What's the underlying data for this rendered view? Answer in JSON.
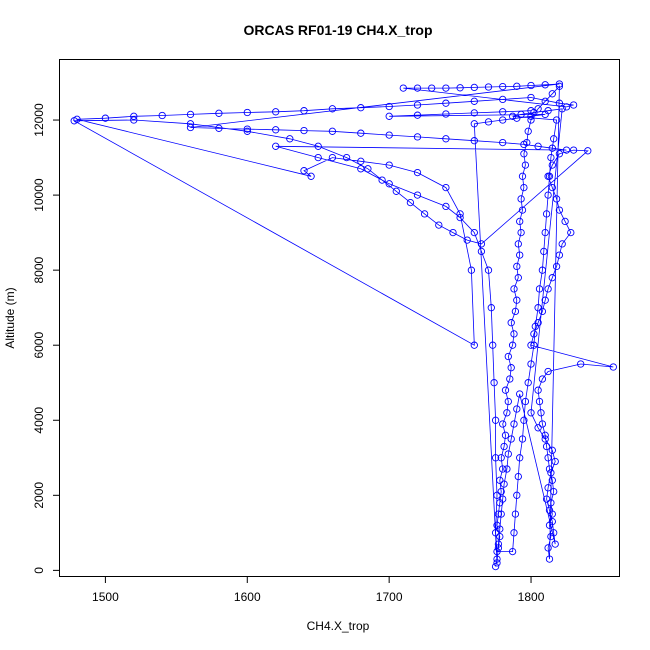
{
  "chart_data": {
    "type": "scatter",
    "title": "ORCAS RF01-19 CH4.X_trop",
    "xlabel": "CH4.X_trop",
    "ylabel": "Altitude (m)",
    "xlim": [
      1468,
      1862
    ],
    "ylim": [
      -150,
      13600
    ],
    "x_ticks": [
      "1500",
      "1600",
      "1700",
      "1800"
    ],
    "y_ticks": [
      "0",
      "2000",
      "4000",
      "6000",
      "8000",
      "10000",
      "12000"
    ],
    "grid": false,
    "legend": "none",
    "marker": "open-circle",
    "lines": true,
    "series_color": "#0000ff",
    "series": [
      {
        "points": [
          [
            1775,
            100
          ],
          [
            1776,
            300
          ],
          [
            1777,
            600
          ],
          [
            1778,
            900
          ],
          [
            1776,
            1200
          ],
          [
            1777,
            1500
          ],
          [
            1778,
            1800
          ],
          [
            1779,
            2100
          ],
          [
            1778,
            2400
          ],
          [
            1780,
            2700
          ],
          [
            1779,
            3000
          ],
          [
            1781,
            3300
          ],
          [
            1782,
            3600
          ],
          [
            1780,
            3900
          ],
          [
            1783,
            4200
          ],
          [
            1784,
            4500
          ],
          [
            1782,
            4800
          ],
          [
            1785,
            5100
          ],
          [
            1786,
            5400
          ],
          [
            1784,
            5700
          ],
          [
            1787,
            6000
          ],
          [
            1788,
            6300
          ],
          [
            1786,
            6600
          ],
          [
            1789,
            6900
          ],
          [
            1790,
            7200
          ],
          [
            1788,
            7500
          ],
          [
            1791,
            7800
          ],
          [
            1790,
            8100
          ],
          [
            1792,
            8400
          ],
          [
            1791,
            8700
          ],
          [
            1793,
            9000
          ],
          [
            1792,
            9300
          ],
          [
            1794,
            9600
          ],
          [
            1793,
            9900
          ],
          [
            1795,
            10200
          ],
          [
            1794,
            10500
          ],
          [
            1796,
            10800
          ],
          [
            1795,
            11100
          ],
          [
            1797,
            11400
          ],
          [
            1798,
            11700
          ],
          [
            1800,
            12000
          ],
          [
            1805,
            12300
          ],
          [
            1810,
            12500
          ],
          [
            1815,
            12700
          ],
          [
            1820,
            12900
          ],
          [
            1813,
            300
          ],
          [
            1812,
            600
          ],
          [
            1814,
            900
          ],
          [
            1813,
            1200
          ],
          [
            1815,
            1500
          ],
          [
            1814,
            1800
          ],
          [
            1816,
            2100
          ],
          [
            1815,
            2400
          ],
          [
            1813,
            2700
          ],
          [
            1812,
            3000
          ],
          [
            1811,
            3300
          ],
          [
            1810,
            3600
          ],
          [
            1808,
            3900
          ],
          [
            1807,
            4200
          ],
          [
            1806,
            4500
          ],
          [
            1805,
            4800
          ],
          [
            1808,
            5100
          ],
          [
            1812,
            5300
          ],
          [
            1835,
            5500
          ],
          [
            1858,
            5420
          ],
          [
            1800,
            6000
          ],
          [
            1802,
            6300
          ],
          [
            1805,
            6600
          ],
          [
            1808,
            6900
          ],
          [
            1810,
            7200
          ],
          [
            1812,
            7500
          ],
          [
            1815,
            7800
          ],
          [
            1818,
            8100
          ],
          [
            1820,
            8400
          ],
          [
            1822,
            8700
          ],
          [
            1828,
            9000
          ],
          [
            1824,
            9300
          ],
          [
            1820,
            9600
          ],
          [
            1818,
            9900
          ],
          [
            1815,
            10200
          ],
          [
            1812,
            10500
          ],
          [
            1815,
            10800
          ],
          [
            1820,
            11100
          ],
          [
            1830,
            11200
          ],
          [
            1840,
            11180
          ],
          [
            1765,
            8700
          ],
          [
            1755,
            8800
          ],
          [
            1745,
            9000
          ],
          [
            1735,
            9200
          ],
          [
            1725,
            9500
          ],
          [
            1715,
            9800
          ],
          [
            1705,
            10100
          ],
          [
            1695,
            10400
          ],
          [
            1685,
            10700
          ],
          [
            1670,
            11000
          ],
          [
            1650,
            11300
          ],
          [
            1630,
            11500
          ],
          [
            1600,
            11700
          ],
          [
            1560,
            11900
          ],
          [
            1520,
            12000
          ],
          [
            1478,
            11980
          ],
          [
            1760,
            6000
          ],
          [
            1758,
            8000
          ],
          [
            1750,
            9500
          ],
          [
            1740,
            10200
          ],
          [
            1720,
            10600
          ],
          [
            1700,
            10800
          ],
          [
            1680,
            10900
          ],
          [
            1660,
            11000
          ],
          [
            1640,
            10650
          ],
          [
            1645,
            10500
          ],
          [
            1480,
            12020
          ],
          [
            1500,
            12050
          ],
          [
            1520,
            12100
          ],
          [
            1540,
            12120
          ],
          [
            1560,
            12150
          ],
          [
            1580,
            12180
          ],
          [
            1600,
            12200
          ],
          [
            1620,
            12220
          ],
          [
            1640,
            12250
          ],
          [
            1660,
            12300
          ],
          [
            1680,
            12330
          ],
          [
            1700,
            12360
          ],
          [
            1720,
            12400
          ],
          [
            1740,
            12450
          ],
          [
            1760,
            12500
          ],
          [
            1780,
            12550
          ],
          [
            1800,
            12600
          ],
          [
            1820,
            12450
          ],
          [
            1830,
            12400
          ],
          [
            1825,
            12350
          ],
          [
            1710,
            12850
          ],
          [
            1720,
            12850
          ],
          [
            1730,
            12850
          ],
          [
            1740,
            12850
          ],
          [
            1750,
            12860
          ],
          [
            1760,
            12870
          ],
          [
            1770,
            12880
          ],
          [
            1780,
            12890
          ],
          [
            1790,
            12900
          ],
          [
            1800,
            12920
          ],
          [
            1810,
            12940
          ],
          [
            1820,
            12960
          ],
          [
            1560,
            11800
          ],
          [
            1580,
            11780
          ],
          [
            1600,
            11760
          ],
          [
            1620,
            11740
          ],
          [
            1640,
            11720
          ],
          [
            1660,
            11700
          ],
          [
            1680,
            11650
          ],
          [
            1700,
            11600
          ],
          [
            1720,
            11550
          ],
          [
            1740,
            11500
          ],
          [
            1760,
            11450
          ],
          [
            1780,
            11400
          ],
          [
            1795,
            11350
          ],
          [
            1805,
            11300
          ],
          [
            1815,
            11250
          ],
          [
            1825,
            11200
          ],
          [
            1620,
            11300
          ],
          [
            1650,
            11000
          ],
          [
            1680,
            10700
          ],
          [
            1700,
            10300
          ],
          [
            1720,
            10000
          ],
          [
            1740,
            9700
          ],
          [
            1750,
            9400
          ],
          [
            1760,
            9000
          ],
          [
            1765,
            8500
          ],
          [
            1770,
            8000
          ],
          [
            1772,
            7000
          ],
          [
            1773,
            6000
          ],
          [
            1774,
            5000
          ],
          [
            1775,
            4000
          ],
          [
            1775,
            3000
          ],
          [
            1776,
            2000
          ],
          [
            1775,
            1000
          ],
          [
            1776,
            500
          ],
          [
            1787,
            500
          ],
          [
            1788,
            1000
          ],
          [
            1789,
            1500
          ],
          [
            1790,
            2000
          ],
          [
            1791,
            2500
          ],
          [
            1792,
            3000
          ],
          [
            1794,
            3500
          ],
          [
            1795,
            4000
          ],
          [
            1796,
            4500
          ],
          [
            1798,
            5000
          ],
          [
            1800,
            5500
          ],
          [
            1802,
            6000
          ],
          [
            1803,
            6500
          ],
          [
            1805,
            7000
          ],
          [
            1806,
            7500
          ],
          [
            1808,
            8000
          ],
          [
            1809,
            8500
          ],
          [
            1810,
            9000
          ],
          [
            1811,
            9500
          ],
          [
            1812,
            10000
          ],
          [
            1813,
            10500
          ],
          [
            1814,
            11000
          ],
          [
            1816,
            11500
          ],
          [
            1818,
            12000
          ],
          [
            1787,
            12100
          ],
          [
            1793,
            12150
          ],
          [
            1802,
            12200
          ],
          [
            1812,
            12250
          ],
          [
            1822,
            12300
          ],
          [
            1800,
            4200
          ],
          [
            1805,
            3800
          ],
          [
            1810,
            3500
          ],
          [
            1815,
            3200
          ],
          [
            1817,
            2900
          ],
          [
            1814,
            2600
          ],
          [
            1812,
            2200
          ],
          [
            1811,
            1900
          ],
          [
            1813,
            1600
          ],
          [
            1815,
            1300
          ],
          [
            1816,
            1000
          ],
          [
            1817,
            700
          ],
          [
            1792,
            4700
          ],
          [
            1790,
            4300
          ],
          [
            1788,
            3900
          ],
          [
            1786,
            3500
          ],
          [
            1784,
            3100
          ],
          [
            1783,
            2700
          ],
          [
            1781,
            2300
          ],
          [
            1780,
            1900
          ],
          [
            1779,
            1500
          ],
          [
            1778,
            1100
          ],
          [
            1777,
            700
          ],
          [
            1776,
            200
          ],
          [
            1760,
            11900
          ],
          [
            1770,
            11950
          ],
          [
            1780,
            12000
          ],
          [
            1790,
            12050
          ],
          [
            1800,
            12100
          ],
          [
            1810,
            12150
          ],
          [
            1700,
            12100
          ],
          [
            1720,
            12130
          ],
          [
            1740,
            12160
          ],
          [
            1760,
            12190
          ],
          [
            1780,
            12220
          ],
          [
            1800,
            12250
          ]
        ]
      }
    ]
  }
}
